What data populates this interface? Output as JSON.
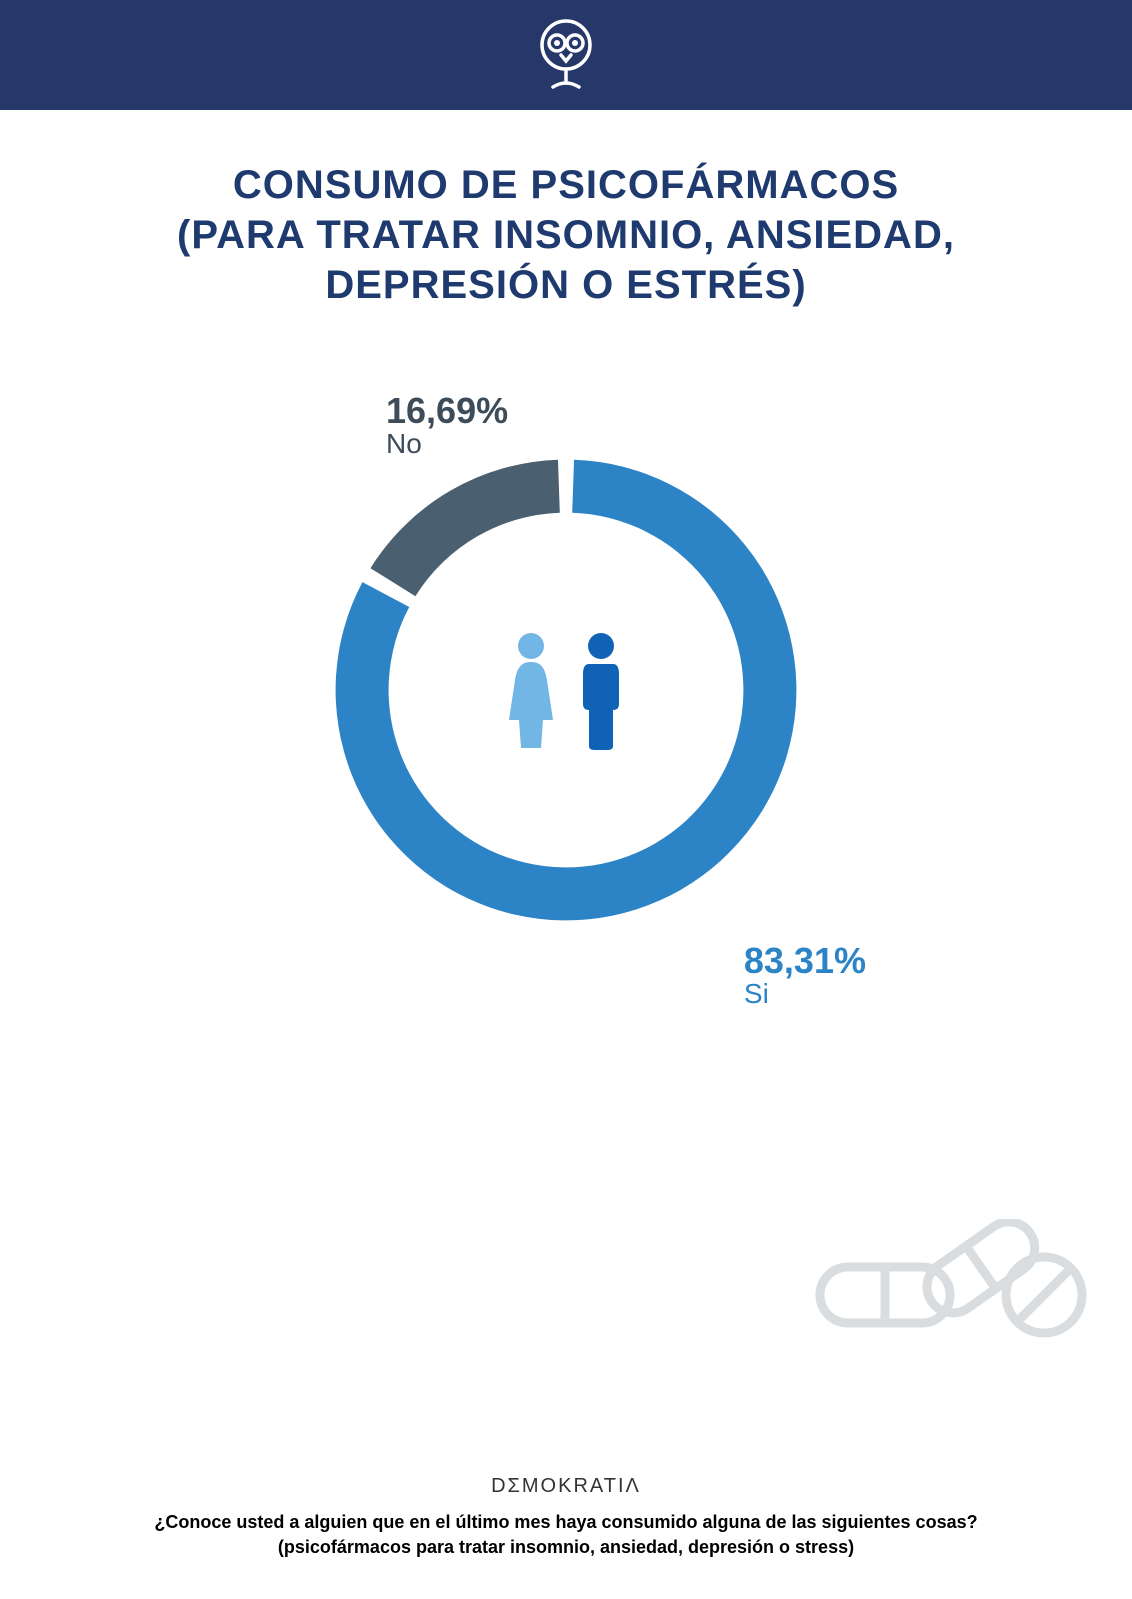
{
  "colors": {
    "header_bg": "#26376a",
    "title": "#1e3a6e",
    "slice_si": "#2c84c6",
    "slice_no": "#4a5f6f",
    "gap": "#ffffff",
    "label_no": "#3d4c58",
    "label_si": "#2c84c6",
    "person_female": "#71b6e4",
    "person_male": "#0f62b5",
    "pills_stroke": "#d9dde0",
    "footer_brand": "#333333",
    "footer_question": "#000000"
  },
  "header": {
    "logo_name": "owl-logo"
  },
  "title": {
    "line1": "CONSUMO DE PSICOFÁRMACOS",
    "line2": "(PARA TRATAR INSOMNIO, ANSIEDAD,",
    "line3": "DEPRESIÓN O ESTRÉS)"
  },
  "chart": {
    "type": "donut",
    "ring_thickness_pct": 23,
    "gap_deg": 4,
    "start_angle_deg": 0,
    "slices": [
      {
        "key": "no",
        "value": 16.69,
        "label_pct": "16,69%",
        "label_txt": "No",
        "color_key": "slice_no"
      },
      {
        "key": "si",
        "value": 83.31,
        "label_pct": "83,31%",
        "label_txt": "Si",
        "color_key": "slice_si"
      }
    ],
    "center_icons": [
      "female",
      "male"
    ]
  },
  "footer": {
    "brand": "DΣMOKRATIΛ",
    "question_line1": "¿Conoce usted a alguien que en el último mes haya consumido alguna de las siguientes cosas?",
    "question_line2": "(psicofármacos para tratar insomnio, ansiedad, depresión o stress)"
  }
}
